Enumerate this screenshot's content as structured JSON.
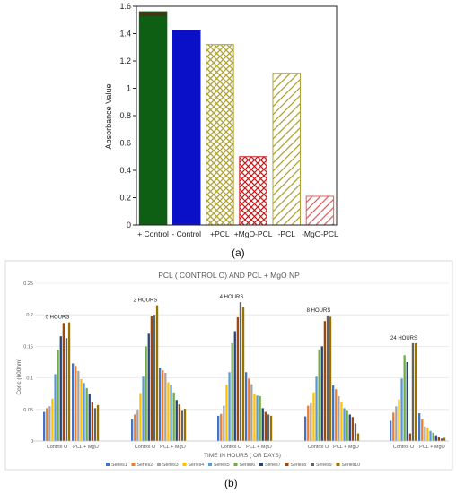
{
  "panel_labels": [
    "(a)",
    "(b)"
  ],
  "chart_data": [
    {
      "type": "bar",
      "title": "",
      "xlabel": "",
      "ylabel": "Absorbance Value",
      "ylim": [
        0,
        1.6
      ],
      "yticks": [
        "0",
        "0.2",
        "0.4",
        "0.6",
        "0.8",
        "1",
        "1.2",
        "1.4",
        "1.6"
      ],
      "categories": [
        "+ Control",
        "- Control",
        "+PCL",
        "+MgO-PCL",
        "-PCL",
        "-MgO-PCL"
      ],
      "values": [
        1.56,
        1.42,
        1.32,
        0.5,
        1.11,
        0.21
      ],
      "colors": [
        "#0e5e14",
        "#0a10c8",
        "#b0a236",
        "#c81e1e",
        "#b0a236",
        "#e06060"
      ],
      "patterns": [
        "solid",
        "solid",
        "crosshatch",
        "crosshatch",
        "diagonal",
        "diagonal"
      ],
      "grid": false
    },
    {
      "type": "bar",
      "title": "PCL ( CONTROL O) AND PCL + MgO NP",
      "xlabel": "TIME IN HOURS ( OR DAYS)",
      "ylabel": "Conc (600nm)",
      "ylim": [
        0,
        0.25
      ],
      "yticks": [
        "0",
        "0.05",
        "0.1",
        "0.15",
        "0.2",
        "0.25"
      ],
      "grid": true,
      "legend_position": "bottom",
      "series_names": [
        "Series1",
        "Series2",
        "Series3",
        "Series4",
        "Series5",
        "Series6",
        "Series7",
        "Series8",
        "Series9",
        "Series10"
      ],
      "series_colors": [
        "#4472c4",
        "#ed7d31",
        "#a5a5a5",
        "#ffc000",
        "#5b9bd5",
        "#70ad47",
        "#264478",
        "#9e480e",
        "#636363",
        "#997300"
      ],
      "groups": [
        {
          "annotation": "0 HOURS",
          "categories": [
            "Control O",
            "PCL + MgO"
          ],
          "values": [
            [
              0.046,
              0.052,
              0.055,
              0.067,
              0.106,
              0.145,
              0.166,
              0.187,
              0.163,
              0.188
            ],
            [
              0.123,
              0.119,
              0.111,
              0.098,
              0.092,
              0.084,
              0.075,
              0.062,
              0.052,
              0.057
            ]
          ]
        },
        {
          "annotation": "2 HOURS",
          "categories": [
            "Control O",
            "PCL + MgO"
          ],
          "values": [
            [
              0.034,
              0.042,
              0.05,
              0.076,
              0.102,
              0.15,
              0.17,
              0.198,
              0.2,
              0.215
            ],
            [
              0.116,
              0.112,
              0.108,
              0.093,
              0.089,
              0.077,
              0.065,
              0.058,
              0.049,
              0.051
            ]
          ]
        },
        {
          "annotation": "4 HOURS",
          "categories": [
            "Control O",
            "PCL + MgO"
          ],
          "values": [
            [
              0.04,
              0.043,
              0.056,
              0.089,
              0.109,
              0.155,
              0.174,
              0.196,
              0.22,
              0.212
            ],
            [
              0.109,
              0.099,
              0.09,
              0.074,
              0.072,
              0.071,
              0.052,
              0.046,
              0.042,
              0.04
            ]
          ]
        },
        {
          "annotation": "8 HOURS",
          "categories": [
            "Control O",
            "PCL + MgO"
          ],
          "values": [
            [
              0.039,
              0.056,
              0.06,
              0.077,
              0.102,
              0.145,
              0.15,
              0.19,
              0.199,
              0.197
            ],
            [
              0.088,
              0.082,
              0.071,
              0.062,
              0.052,
              0.049,
              0.042,
              0.038,
              0.028,
              0.012
            ]
          ]
        },
        {
          "annotation": "24 HOURS",
          "categories": [
            "Control O",
            "PCL + MgO"
          ],
          "values": [
            [
              0.032,
              0.045,
              0.055,
              0.066,
              0.099,
              0.136,
              0.125,
              0.012,
              0.155,
              0.155
            ],
            [
              0.044,
              0.034,
              0.023,
              0.021,
              0.016,
              0.013,
              0.009,
              0.006,
              0.004,
              0.005
            ]
          ]
        }
      ]
    }
  ]
}
